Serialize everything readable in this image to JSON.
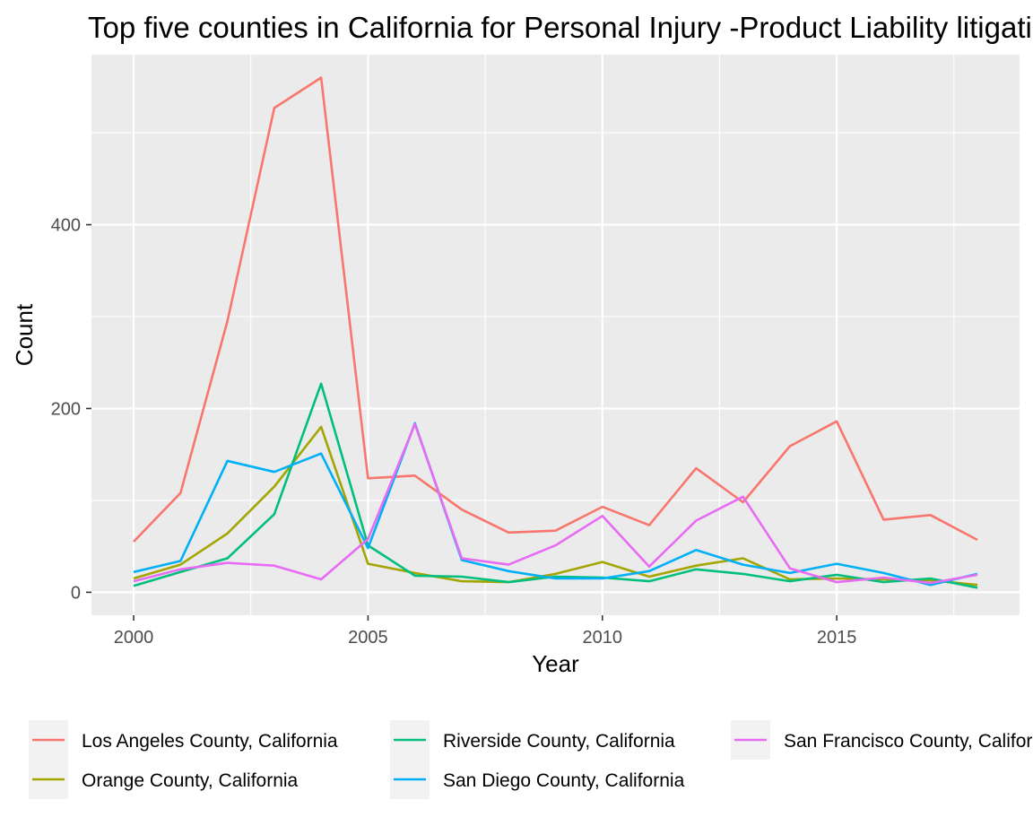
{
  "chart_data": {
    "type": "line",
    "title": "Top five counties in California for Personal Injury -Product Liability litigation",
    "xlabel": "Year",
    "ylabel": "Count",
    "xlim": [
      1999.1,
      2018.9
    ],
    "ylim": [
      -25,
      585
    ],
    "x_ticks": [
      2000,
      2005,
      2010,
      2015
    ],
    "x_tick_labels": [
      "2000",
      "2005",
      "2010",
      "2015"
    ],
    "y_ticks": [
      0,
      200,
      400
    ],
    "y_tick_labels": [
      "0",
      "200",
      "400"
    ],
    "grid": true,
    "legend_position": "bottom",
    "x": [
      2000,
      2001,
      2002,
      2003,
      2004,
      2005,
      2006,
      2007,
      2008,
      2009,
      2010,
      2011,
      2012,
      2013,
      2014,
      2015,
      2016,
      2017,
      2018
    ],
    "series": [
      {
        "name": "Los Angeles County, California",
        "color": "#F8766D",
        "values": [
          55,
          108,
          295,
          527,
          560,
          124,
          127,
          90,
          65,
          67,
          93,
          73,
          135,
          98,
          159,
          186,
          79,
          84,
          57
        ]
      },
      {
        "name": "Orange County, California",
        "color": "#A3A500",
        "values": [
          15,
          30,
          64,
          115,
          180,
          31,
          21,
          12,
          11,
          20,
          33,
          17,
          29,
          37,
          14,
          15,
          14,
          13,
          8
        ]
      },
      {
        "name": "Riverside County, California",
        "color": "#00BF7D",
        "values": [
          7,
          22,
          37,
          85,
          227,
          51,
          18,
          17,
          11,
          17,
          16,
          12,
          25,
          20,
          12,
          19,
          11,
          15,
          5
        ]
      },
      {
        "name": "San Diego County, California",
        "color": "#00B0F6",
        "values": [
          22,
          34,
          143,
          131,
          151,
          48,
          184,
          35,
          23,
          15,
          15,
          23,
          46,
          30,
          21,
          31,
          21,
          8,
          20
        ]
      },
      {
        "name": "San Francisco County, California",
        "color": "#E76BF3",
        "values": [
          12,
          25,
          32,
          29,
          14,
          58,
          183,
          37,
          30,
          51,
          83,
          28,
          78,
          104,
          26,
          11,
          16,
          10,
          19
        ]
      }
    ],
    "legend_rows": [
      [
        "Los Angeles County, California",
        "Riverside County, California",
        "San Francisco County, California"
      ],
      [
        "Orange County, California",
        "San Diego County, California"
      ]
    ]
  }
}
